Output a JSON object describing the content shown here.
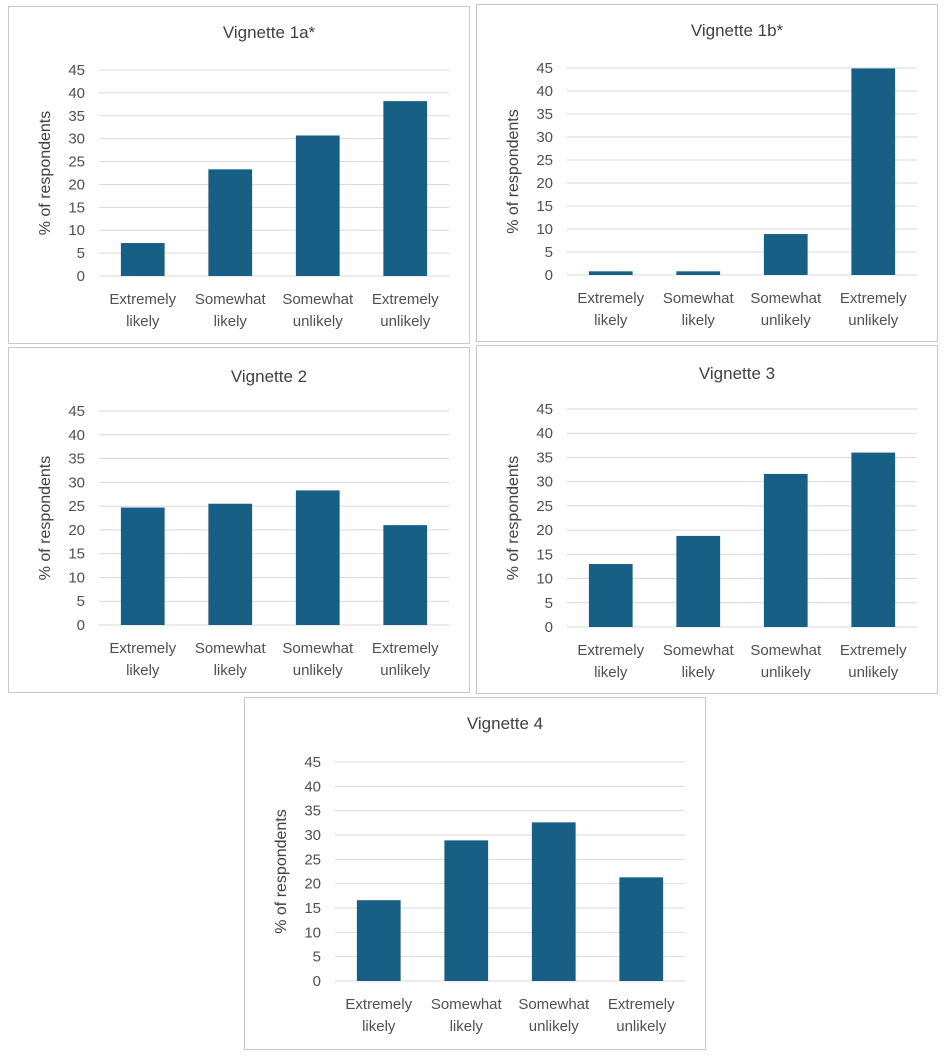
{
  "style": {
    "bar_color": "#175f85",
    "grid_color": "#d9d9d9"
  },
  "chart_data": [
    {
      "type": "bar",
      "title": "Vignette 1a*",
      "categories": [
        [
          "Extremely",
          "likely"
        ],
        [
          "Somewhat",
          "likely"
        ],
        [
          "Somewhat",
          "unlikely"
        ],
        [
          "Extremely",
          "unlikely"
        ]
      ],
      "values": [
        7.2,
        23.3,
        30.7,
        38.2
      ],
      "ylabel": "% of respondents",
      "ylim": [
        0,
        45
      ],
      "yticks": [
        0,
        5,
        10,
        15,
        20,
        25,
        30,
        35,
        40,
        45
      ],
      "grid": true
    },
    {
      "type": "bar",
      "title": "Vignette 1b*",
      "categories": [
        [
          "Extremely",
          "likely"
        ],
        [
          "Somewhat",
          "likely"
        ],
        [
          "Somewhat",
          "unlikely"
        ],
        [
          "Extremely",
          "unlikely"
        ]
      ],
      "values": [
        0.8,
        0.8,
        8.9,
        44.9
      ],
      "ylabel": "% of respondents",
      "ylim": [
        0,
        45
      ],
      "yticks": [
        0,
        5,
        10,
        15,
        20,
        25,
        30,
        35,
        40,
        45
      ],
      "grid": true
    },
    {
      "type": "bar",
      "title": "Vignette 2",
      "categories": [
        [
          "Extremely",
          "likely"
        ],
        [
          "Somewhat",
          "likely"
        ],
        [
          "Somewhat",
          "unlikely"
        ],
        [
          "Extremely",
          "unlikely"
        ]
      ],
      "values": [
        24.7,
        25.5,
        28.3,
        21.0
      ],
      "ylabel": "% of respondents",
      "ylim": [
        0,
        45
      ],
      "yticks": [
        0,
        5,
        10,
        15,
        20,
        25,
        30,
        35,
        40,
        45
      ],
      "grid": true
    },
    {
      "type": "bar",
      "title": "Vignette 3",
      "categories": [
        [
          "Extremely",
          "likely"
        ],
        [
          "Somewhat",
          "likely"
        ],
        [
          "Somewhat",
          "unlikely"
        ],
        [
          "Extremely",
          "unlikely"
        ]
      ],
      "values": [
        13.0,
        18.8,
        31.6,
        36.0
      ],
      "ylabel": "% of respondents",
      "ylim": [
        0,
        45
      ],
      "yticks": [
        0,
        5,
        10,
        15,
        20,
        25,
        30,
        35,
        40,
        45
      ],
      "grid": true
    },
    {
      "type": "bar",
      "title": "Vignette 4",
      "categories": [
        [
          "Extremely",
          "likely"
        ],
        [
          "Somewhat",
          "likely"
        ],
        [
          "Somewhat",
          "unlikely"
        ],
        [
          "Extremely",
          "unlikely"
        ]
      ],
      "values": [
        16.6,
        28.9,
        32.6,
        21.3
      ],
      "ylabel": "% of respondents",
      "ylim": [
        0,
        45
      ],
      "yticks": [
        0,
        5,
        10,
        15,
        20,
        25,
        30,
        35,
        40,
        45
      ],
      "grid": true
    }
  ]
}
